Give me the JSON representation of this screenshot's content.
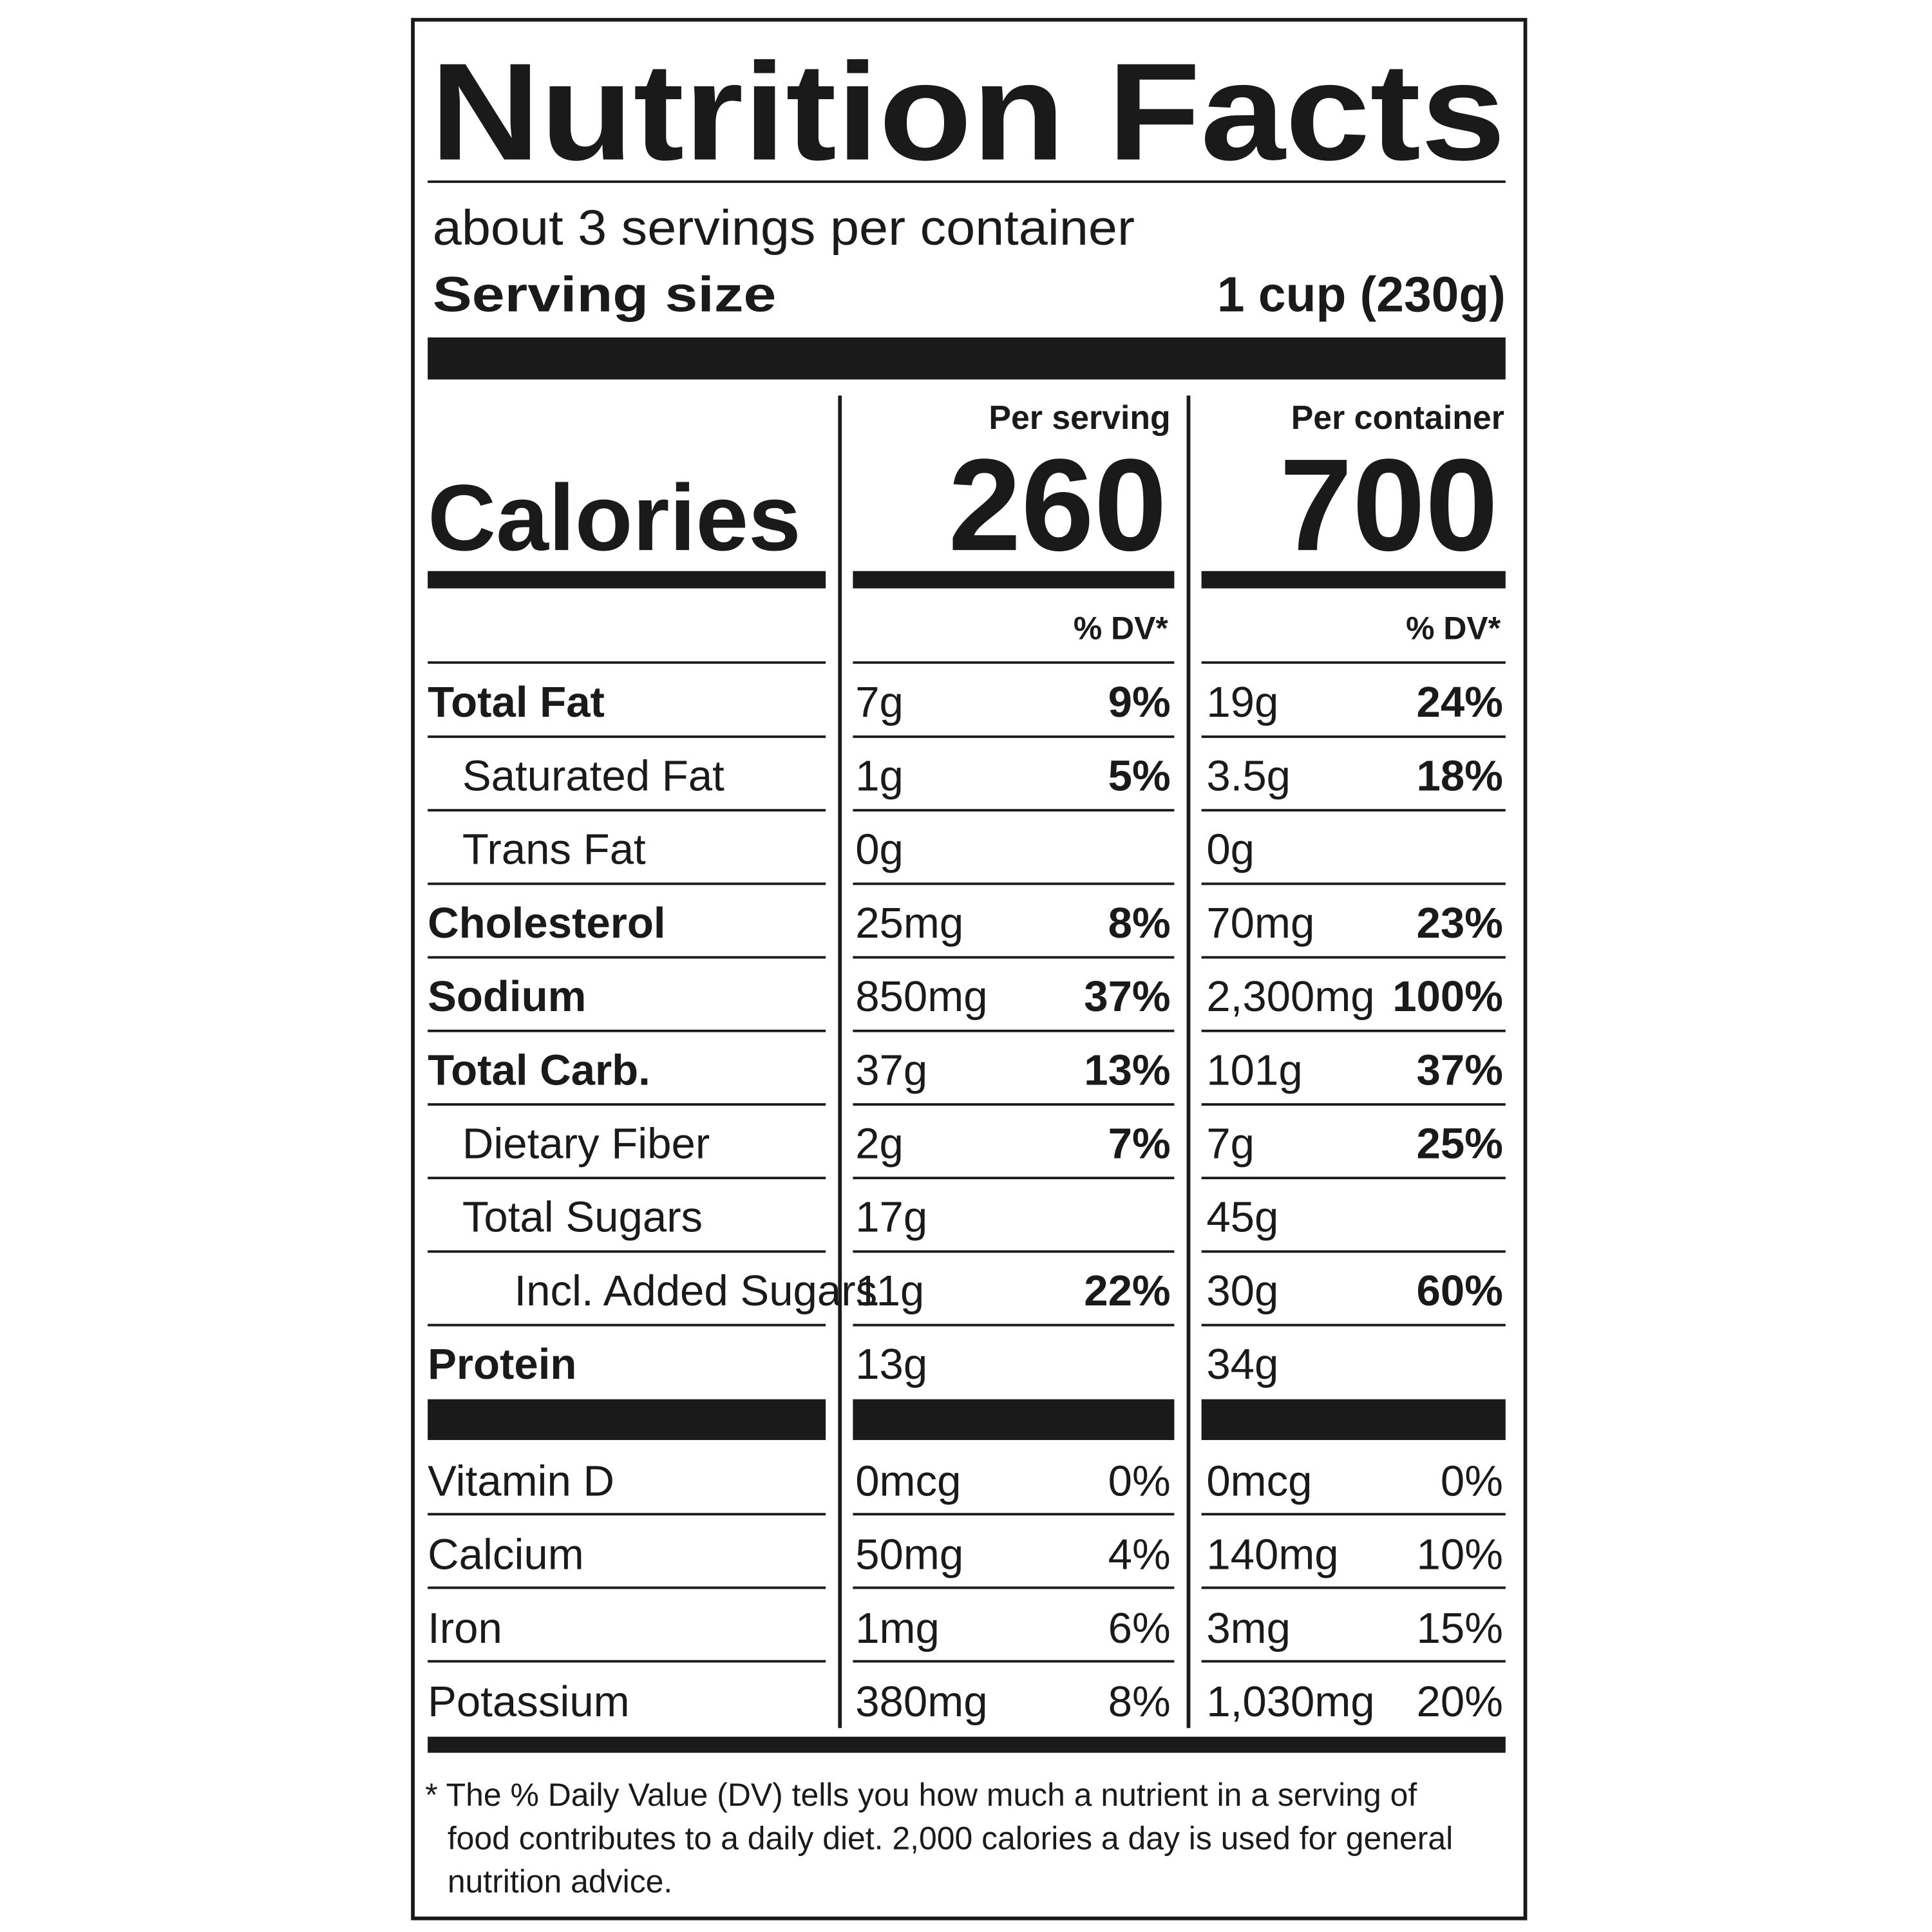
{
  "header": {
    "title": "Nutrition Facts",
    "servings": "about 3 servings per container",
    "serving_size_label": "Serving size",
    "serving_size_value": "1 cup (230g)"
  },
  "columns": {
    "serving": "Per serving",
    "container": "Per container",
    "dv_label": "% DV*"
  },
  "calories": {
    "label": "Calories",
    "serving": "260",
    "container": "700"
  },
  "nutrients": [
    {
      "name": "Total Fat",
      "level": 0,
      "serving": {
        "amount": "7g",
        "dv": "9%"
      },
      "container": {
        "amount": "19g",
        "dv": "24%"
      }
    },
    {
      "name": "Saturated Fat",
      "level": 1,
      "serving": {
        "amount": "1g",
        "dv": "5%"
      },
      "container": {
        "amount": "3.5g",
        "dv": "18%"
      }
    },
    {
      "name": "Trans Fat",
      "level": 1,
      "serving": {
        "amount": "0g"
      },
      "container": {
        "amount": "0g"
      }
    },
    {
      "name": "Cholesterol",
      "level": 0,
      "serving": {
        "amount": "25mg",
        "dv": "8%"
      },
      "container": {
        "amount": "70mg",
        "dv": "23%"
      }
    },
    {
      "name": "Sodium",
      "level": 0,
      "serving": {
        "amount": "850mg",
        "dv": "37%"
      },
      "container": {
        "amount": "2,300mg",
        "dv": "100%"
      }
    },
    {
      "name": "Total Carb.",
      "level": 0,
      "serving": {
        "amount": "37g",
        "dv": "13%"
      },
      "container": {
        "amount": "101g",
        "dv": "37%"
      }
    },
    {
      "name": "Dietary Fiber",
      "level": 1,
      "serving": {
        "amount": "2g",
        "dv": "7%"
      },
      "container": {
        "amount": "7g",
        "dv": "25%"
      }
    },
    {
      "name": "Total Sugars",
      "level": 1,
      "serving": {
        "amount": "17g"
      },
      "container": {
        "amount": "45g"
      }
    },
    {
      "name": "Incl. Added Sugars",
      "level": 2,
      "serving": {
        "amount": "11g",
        "dv": "22%"
      },
      "container": {
        "amount": "30g",
        "dv": "60%"
      }
    },
    {
      "name": "Protein",
      "level": 0,
      "serving": {
        "amount": "13g"
      },
      "container": {
        "amount": "34g"
      }
    }
  ],
  "vitamins": [
    {
      "name": "Vitamin D",
      "serving": {
        "amount": "0mcg",
        "dv": "0%"
      },
      "container": {
        "amount": "0mcg",
        "dv": "0%"
      }
    },
    {
      "name": "Calcium",
      "serving": {
        "amount": "50mg",
        "dv": "4%"
      },
      "container": {
        "amount": "140mg",
        "dv": "10%"
      }
    },
    {
      "name": "Iron",
      "serving": {
        "amount": "1mg",
        "dv": "6%"
      },
      "container": {
        "amount": "3mg",
        "dv": "15%"
      }
    },
    {
      "name": "Potassium",
      "serving": {
        "amount": "380mg",
        "dv": "8%"
      },
      "container": {
        "amount": "1,030mg",
        "dv": "20%"
      }
    }
  ],
  "footnote": [
    "* The % Daily Value (DV) tells you how much a nutrient in a serving of",
    "food contributes to a daily diet. 2,000 calories a day is used for general",
    "nutrition advice."
  ]
}
